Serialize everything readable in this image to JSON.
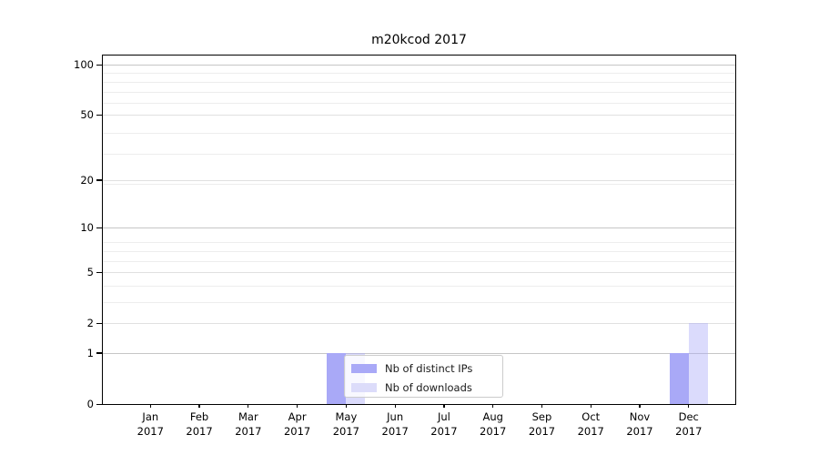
{
  "title": "m20kcod 2017",
  "colors": {
    "bar_distinct_ips": "#a9a9f7",
    "bar_downloads_visual": "#dcdcfa",
    "bar_downloads_fill": "rgba(169,169,247,0.42)",
    "grid_minor": "#ededed",
    "grid_major": "#e0e0e0",
    "grid_decade": "#c6c6c6",
    "axis": "#000000",
    "legend_border": "#cccccc"
  },
  "chart_data": {
    "type": "bar",
    "title": "m20kcod 2017",
    "categories": [
      "Jan 2017",
      "Feb 2017",
      "Mar 2017",
      "Apr 2017",
      "May 2017",
      "Jun 2017",
      "Jul 2017",
      "Aug 2017",
      "Sep 2017",
      "Oct 2017",
      "Nov 2017",
      "Dec 2017"
    ],
    "x_tick_lines": [
      [
        "Jan",
        "2017"
      ],
      [
        "Feb",
        "2017"
      ],
      [
        "Mar",
        "2017"
      ],
      [
        "Apr",
        "2017"
      ],
      [
        "May",
        "2017"
      ],
      [
        "Jun",
        "2017"
      ],
      [
        "Jul",
        "2017"
      ],
      [
        "Aug",
        "2017"
      ],
      [
        "Sep",
        "2017"
      ],
      [
        "Oct",
        "2017"
      ],
      [
        "Nov",
        "2017"
      ],
      [
        "Dec",
        "2017"
      ]
    ],
    "series": [
      {
        "name": "Nb of distinct IPs",
        "color": "#a9a9f7",
        "values": [
          0,
          0,
          0,
          0,
          1,
          0,
          0,
          0,
          0,
          0,
          0,
          1
        ]
      },
      {
        "name": "Nb of downloads",
        "color": "#dcdcfa",
        "fill": "rgba(169,169,247,0.42)",
        "values": [
          0,
          0,
          0,
          0,
          1,
          0,
          0,
          0,
          0,
          0,
          0,
          2
        ]
      }
    ],
    "xlabel": "",
    "ylabel": "",
    "yscale": "log(1+y) symlog-like",
    "yticks": [
      0,
      1,
      2,
      5,
      10,
      20,
      50,
      100
    ],
    "ytick_labels": [
      "0",
      "1",
      "2",
      "5",
      "10",
      "20",
      "50",
      "100"
    ],
    "ylim": [
      0,
      112
    ],
    "grid": "horizontal, major and minor",
    "legend_position": "inside axes, lower-left of center"
  }
}
